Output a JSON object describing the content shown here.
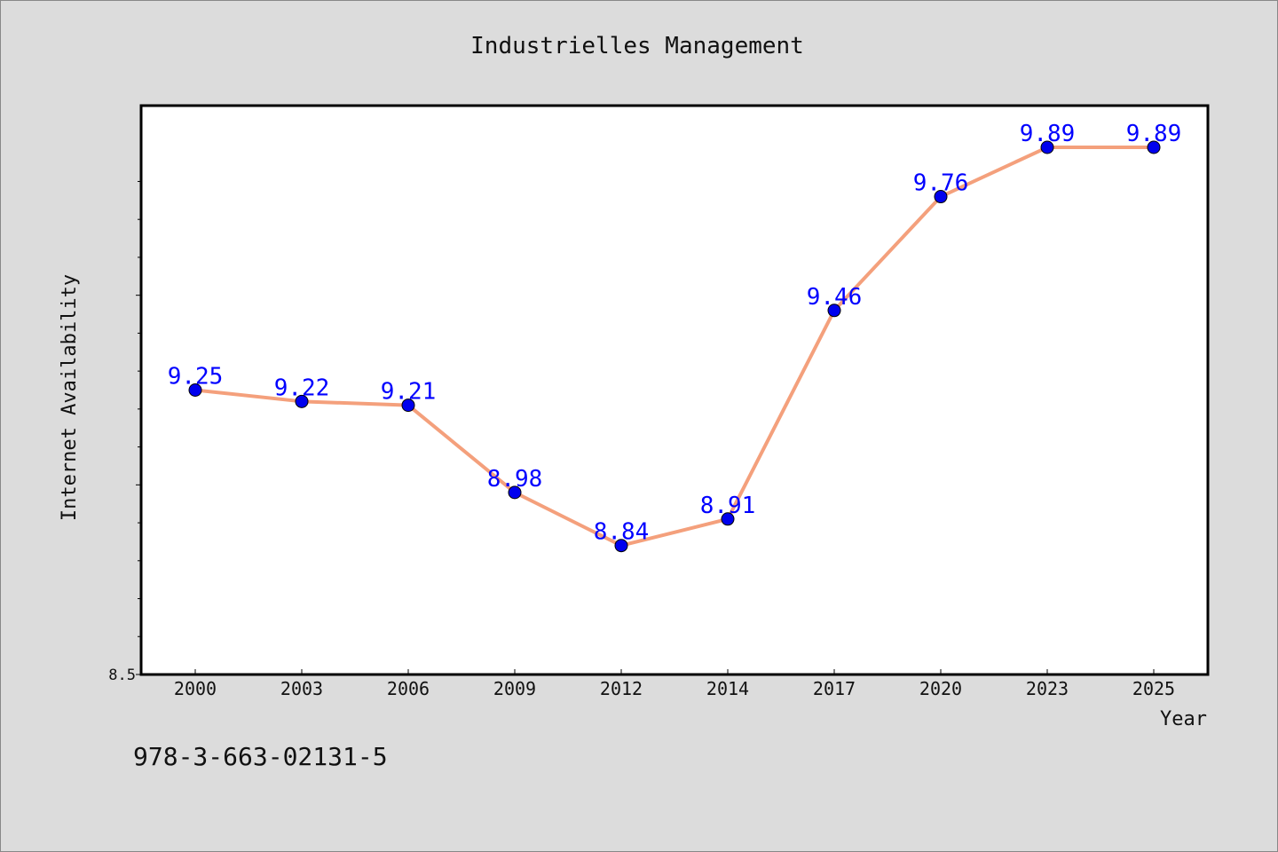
{
  "chart_data": {
    "type": "line",
    "title": "Industrielles Management",
    "xlabel": "Year",
    "ylabel": "Internet Availability",
    "categories": [
      "2000",
      "2003",
      "2006",
      "2009",
      "2012",
      "2014",
      "2017",
      "2020",
      "2023",
      "2025"
    ],
    "series": [
      {
        "values": [
          9.25,
          9.22,
          9.21,
          8.98,
          8.84,
          8.91,
          9.46,
          9.76,
          9.89,
          9.89
        ],
        "data_labels": [
          "9.25",
          "9.22",
          "9.21",
          "8.98",
          "8.84",
          "8.91",
          "9.46",
          "9.76",
          "9.89",
          "9.89"
        ]
      }
    ],
    "ylim": [
      8.5,
      10.0
    ],
    "y_tick_labels": [
      "8.5"
    ],
    "grid": false,
    "line_color": "#f4a07c",
    "marker_color": "#0000ee",
    "label_color": "#0000ff"
  },
  "footer": {
    "text": "978-3-663-02131-5"
  }
}
